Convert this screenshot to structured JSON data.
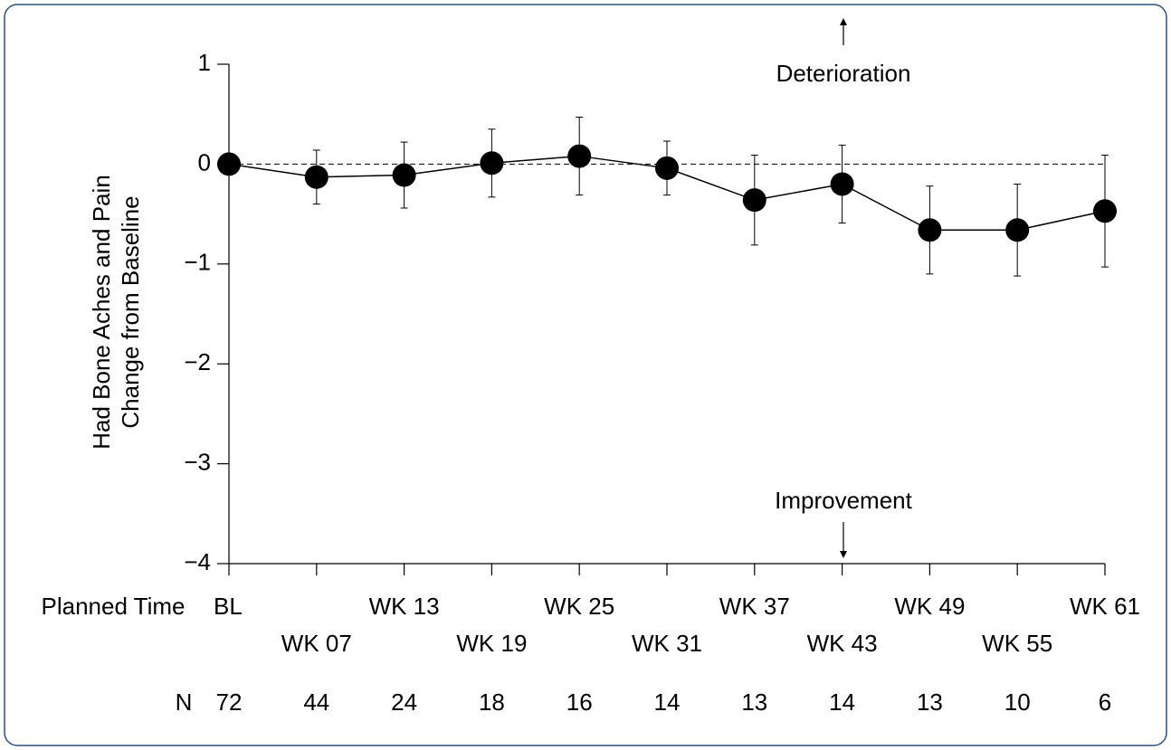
{
  "chart_data": {
    "type": "line",
    "ylabel": [
      "Had Bone Aches and Pain",
      "Change from Baseline"
    ],
    "xlabel": "Planned Time",
    "categories": [
      "BL",
      "WK 07",
      "WK 13",
      "WK 19",
      "WK 25",
      "WK 31",
      "WK 37",
      "WK 43",
      "WK 49",
      "WK 55",
      "WK 61"
    ],
    "series": [
      {
        "color": "#000000",
        "values": [
          0,
          -0.13,
          -0.11,
          0.01,
          0.08,
          -0.04,
          -0.36,
          -0.2,
          -0.66,
          -0.66,
          -0.47
        ],
        "errors": [
          null,
          0.27,
          0.33,
          0.34,
          0.39,
          0.27,
          0.45,
          0.39,
          0.44,
          0.46,
          0.56
        ]
      }
    ],
    "ylim": [
      -4,
      1
    ],
    "yticks": [
      {
        "value": -4,
        "label": "−4"
      },
      {
        "value": -3,
        "label": "−3"
      },
      {
        "value": -2,
        "label": "−2"
      },
      {
        "value": -1,
        "label": "−1"
      },
      0,
      1
    ],
    "reference_line": 0,
    "annotations": [
      "Deterioration",
      "Improvement"
    ],
    "n_label": "N",
    "n_counts": [
      72,
      44,
      24,
      18,
      16,
      14,
      13,
      14,
      13,
      10,
      6
    ]
  }
}
